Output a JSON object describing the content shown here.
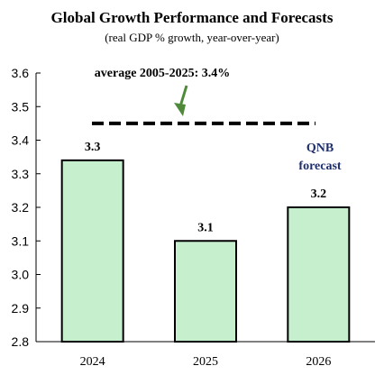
{
  "chart_data": {
    "type": "bar",
    "title": "Global Growth Performance and Forecasts",
    "subtitle": "(real GDP % growth, year-over-year)",
    "categories": [
      "2024",
      "2025",
      "2026"
    ],
    "values": [
      3.34,
      3.1,
      3.2
    ],
    "data_labels": [
      "3.3",
      "3.1",
      "3.2"
    ],
    "ylim": [
      2.8,
      3.6
    ],
    "yticks": [
      "2.8",
      "2.9",
      "3.0",
      "3.1",
      "3.2",
      "3.3",
      "3.4",
      "3.5",
      "3.6"
    ],
    "grid": false,
    "reference_line": {
      "value": 3.45,
      "style": "dashed"
    },
    "annotations": {
      "average": "average 2005-2025: 3.4%",
      "forecast_line1": "QNB",
      "forecast_line2": "forecast"
    },
    "colors": {
      "bar_fill": "#c6efce",
      "bar_stroke": "#000000",
      "arrow": "#4f8a3a",
      "forecast_text": "#1f2f6e"
    }
  }
}
